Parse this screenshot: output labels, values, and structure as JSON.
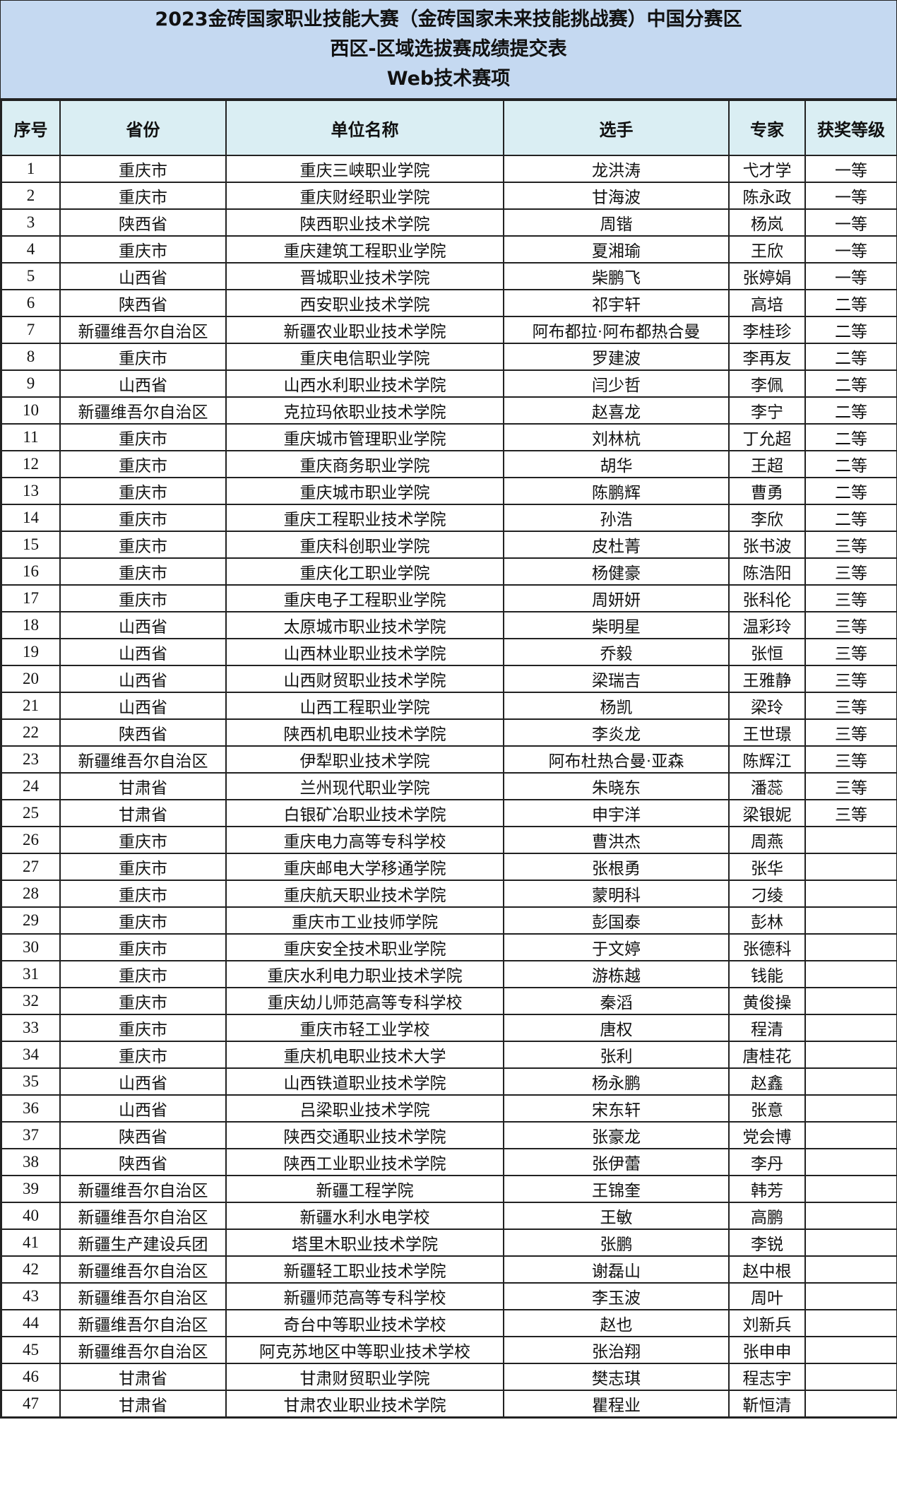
{
  "title": {
    "line1": "2023金砖国家职业技能大赛（金砖国家未来技能挑战赛）中国分赛区",
    "line2": "西区-区域选拔赛成绩提交表",
    "line3": "Web技术赛项"
  },
  "colors": {
    "title_bg": "#c5d9f1",
    "header_bg": "#daeef3"
  },
  "columns": [
    "序号",
    "省份",
    "单位名称",
    "选手",
    "专家",
    "获奖等级"
  ],
  "rows": [
    [
      "1",
      "重庆市",
      "重庆三峡职业学院",
      "龙洪涛",
      "弋才学",
      "一等"
    ],
    [
      "2",
      "重庆市",
      "重庆财经职业学院",
      "甘海波",
      "陈永政",
      "一等"
    ],
    [
      "3",
      "陕西省",
      "陕西职业技术学院",
      "周锴",
      "杨岚",
      "一等"
    ],
    [
      "4",
      "重庆市",
      "重庆建筑工程职业学院",
      "夏湘瑜",
      "王欣",
      "一等"
    ],
    [
      "5",
      "山西省",
      "晋城职业技术学院",
      "柴鹏飞",
      "张婷娟",
      "一等"
    ],
    [
      "6",
      "陕西省",
      "西安职业技术学院",
      "祁宇轩",
      "高培",
      "二等"
    ],
    [
      "7",
      "新疆维吾尔自治区",
      "新疆农业职业技术学院",
      "阿布都拉·阿布都热合曼",
      "李桂珍",
      "二等"
    ],
    [
      "8",
      "重庆市",
      "重庆电信职业学院",
      "罗建波",
      "李再友",
      "二等"
    ],
    [
      "9",
      "山西省",
      "山西水利职业技术学院",
      "闫少哲",
      "李佩",
      "二等"
    ],
    [
      "10",
      "新疆维吾尔自治区",
      "克拉玛依职业技术学院",
      "赵喜龙",
      "李宁",
      "二等"
    ],
    [
      "11",
      "重庆市",
      "重庆城市管理职业学院",
      "刘林杭",
      "丁允超",
      "二等"
    ],
    [
      "12",
      "重庆市",
      "重庆商务职业学院",
      "胡华",
      "王超",
      "二等"
    ],
    [
      "13",
      "重庆市",
      "重庆城市职业学院",
      "陈鹏辉",
      "曹勇",
      "二等"
    ],
    [
      "14",
      "重庆市",
      "重庆工程职业技术学院",
      "孙浩",
      "李欣",
      "二等"
    ],
    [
      "15",
      "重庆市",
      "重庆科创职业学院",
      "皮杜菁",
      "张书波",
      "三等"
    ],
    [
      "16",
      "重庆市",
      "重庆化工职业学院",
      "杨健豪",
      "陈浩阳",
      "三等"
    ],
    [
      "17",
      "重庆市",
      "重庆电子工程职业学院",
      "周妍妍",
      "张科伦",
      "三等"
    ],
    [
      "18",
      "山西省",
      "太原城市职业技术学院",
      "柴明星",
      "温彩玲",
      "三等"
    ],
    [
      "19",
      "山西省",
      "山西林业职业技术学院",
      "乔毅",
      "张恒",
      "三等"
    ],
    [
      "20",
      "山西省",
      "山西财贸职业技术学院",
      "梁瑞吉",
      "王雅静",
      "三等"
    ],
    [
      "21",
      "山西省",
      "山西工程职业学院",
      "杨凯",
      "梁玲",
      "三等"
    ],
    [
      "22",
      "陕西省",
      "陕西机电职业技术学院",
      "李炎龙",
      "王世璟",
      "三等"
    ],
    [
      "23",
      "新疆维吾尔自治区",
      "伊犁职业技术学院",
      "阿布杜热合曼·亚森",
      "陈辉江",
      "三等"
    ],
    [
      "24",
      "甘肃省",
      "兰州现代职业学院",
      "朱晓东",
      "潘蕊",
      "三等"
    ],
    [
      "25",
      "甘肃省",
      "白银矿冶职业技术学院",
      "申宇洋",
      "梁银妮",
      "三等"
    ],
    [
      "26",
      "重庆市",
      "重庆电力高等专科学校",
      "曹洪杰",
      "周燕",
      ""
    ],
    [
      "27",
      "重庆市",
      "重庆邮电大学移通学院",
      "张根勇",
      "张华",
      ""
    ],
    [
      "28",
      "重庆市",
      "重庆航天职业技术学院",
      "蒙明科",
      "刁绫",
      ""
    ],
    [
      "29",
      "重庆市",
      "重庆市工业技师学院",
      "彭国泰",
      "彭林",
      ""
    ],
    [
      "30",
      "重庆市",
      "重庆安全技术职业学院",
      "于文婷",
      "张德科",
      ""
    ],
    [
      "31",
      "重庆市",
      "重庆水利电力职业技术学院",
      "游栋越",
      "钱能",
      ""
    ],
    [
      "32",
      "重庆市",
      "重庆幼儿师范高等专科学校",
      "秦滔",
      "黄俊操",
      ""
    ],
    [
      "33",
      "重庆市",
      "重庆市轻工业学校",
      "唐权",
      "程清",
      ""
    ],
    [
      "34",
      "重庆市",
      "重庆机电职业技术大学",
      "张利",
      "唐桂花",
      ""
    ],
    [
      "35",
      "山西省",
      "山西铁道职业技术学院",
      "杨永鹏",
      "赵鑫",
      ""
    ],
    [
      "36",
      "山西省",
      "吕梁职业技术学院",
      "宋东轩",
      "张意",
      ""
    ],
    [
      "37",
      "陕西省",
      "陕西交通职业技术学院",
      "张豪龙",
      "党会博",
      ""
    ],
    [
      "38",
      "陕西省",
      "陕西工业职业技术学院",
      "张伊蕾",
      "李丹",
      ""
    ],
    [
      "39",
      "新疆维吾尔自治区",
      "新疆工程学院",
      "王锦奎",
      "韩芳",
      ""
    ],
    [
      "40",
      "新疆维吾尔自治区",
      "新疆水利水电学校",
      "王敏",
      "高鹏",
      ""
    ],
    [
      "41",
      "新疆生产建设兵团",
      "塔里木职业技术学院",
      "张鹏",
      "李锐",
      ""
    ],
    [
      "42",
      "新疆维吾尔自治区",
      "新疆轻工职业技术学院",
      "谢磊山",
      "赵中根",
      ""
    ],
    [
      "43",
      "新疆维吾尔自治区",
      "新疆师范高等专科学校",
      "李玉波",
      "周叶",
      ""
    ],
    [
      "44",
      "新疆维吾尔自治区",
      "奇台中等职业技术学校",
      "赵也",
      "刘新兵",
      ""
    ],
    [
      "45",
      "新疆维吾尔自治区",
      "阿克苏地区中等职业技术学校",
      "张治翔",
      "张申申",
      ""
    ],
    [
      "46",
      "甘肃省",
      "甘肃财贸职业学院",
      "樊志琪",
      "程志宇",
      ""
    ],
    [
      "47",
      "甘肃省",
      "甘肃农业职业技术学院",
      "瞿程业",
      "靳恒清",
      ""
    ]
  ]
}
